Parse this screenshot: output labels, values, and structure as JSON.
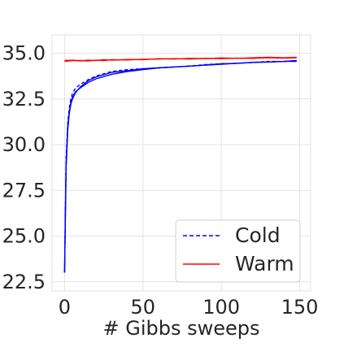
{
  "chart_data": {
    "type": "line",
    "title": "",
    "xlabel": "# Gibbs sweeps",
    "ylabel": "",
    "xlim": [
      -8,
      157
    ],
    "ylim": [
      22.0,
      36.0
    ],
    "x_ticks": [
      0,
      50,
      100,
      150
    ],
    "y_ticks": [
      22.5,
      25.0,
      27.5,
      30.0,
      32.5,
      35.0
    ],
    "x_tick_labels": [
      "0",
      "50",
      "100",
      "150"
    ],
    "y_tick_labels": [
      "22.5",
      "25.0",
      "27.5",
      "30.0",
      "32.5",
      "35.0"
    ],
    "grid": true,
    "legend_position": "bottom-right",
    "legend": [
      {
        "label": "Cold",
        "color": "#0000ff",
        "style": "dashed"
      },
      {
        "label": "Warm",
        "color": "#ff0000",
        "style": "solid"
      }
    ],
    "series": [
      {
        "legend": "Cold",
        "color": "#0000ff",
        "style": "solid",
        "x": [
          0,
          1,
          2,
          3,
          4,
          5,
          7,
          10,
          15,
          20,
          30,
          40,
          50,
          60,
          70,
          80,
          90,
          100,
          110,
          120,
          130,
          140,
          148
        ],
        "y": [
          23.0,
          29.0,
          31.0,
          31.8,
          32.3,
          32.6,
          32.9,
          33.1,
          33.4,
          33.6,
          33.85,
          34.0,
          34.1,
          34.2,
          34.25,
          34.3,
          34.35,
          34.4,
          34.45,
          34.5,
          34.52,
          34.55,
          34.55
        ]
      },
      {
        "legend": "Cold",
        "color": "#0000ff",
        "style": "solid",
        "x": [
          0,
          1,
          2,
          3,
          4,
          5,
          7,
          10,
          15,
          20,
          30,
          40,
          50,
          60,
          70,
          80,
          90,
          100,
          110,
          120,
          130,
          140,
          148
        ],
        "y": [
          23.0,
          28.7,
          30.8,
          31.7,
          32.2,
          32.5,
          32.85,
          33.15,
          33.5,
          33.7,
          33.95,
          34.05,
          34.15,
          34.2,
          34.25,
          34.3,
          34.35,
          34.42,
          34.45,
          34.5,
          34.52,
          34.55,
          34.6
        ]
      },
      {
        "legend": "Cold",
        "color": "#0000ff",
        "style": "dashed",
        "x": [
          0,
          1,
          2,
          3,
          4,
          5,
          7,
          10,
          15,
          20,
          30,
          40,
          50,
          60,
          70,
          80,
          90,
          100,
          110,
          120,
          130,
          140,
          148
        ],
        "y": [
          23.0,
          29.3,
          31.2,
          32.0,
          32.5,
          32.8,
          33.1,
          33.3,
          33.55,
          33.75,
          34.0,
          34.1,
          34.15,
          34.2,
          34.25,
          34.3,
          34.38,
          34.42,
          34.45,
          34.5,
          34.55,
          34.55,
          34.6
        ]
      },
      {
        "legend": "Warm",
        "color": "#ff0000",
        "style": "solid",
        "x": [
          0,
          5,
          10,
          15,
          20,
          25,
          30,
          40,
          50,
          60,
          70,
          80,
          90,
          100,
          110,
          120,
          130,
          140,
          148
        ],
        "y": [
          34.55,
          34.6,
          34.6,
          34.58,
          34.62,
          34.6,
          34.65,
          34.63,
          34.67,
          34.68,
          34.7,
          34.68,
          34.72,
          34.7,
          34.73,
          34.72,
          34.75,
          34.73,
          34.75
        ]
      },
      {
        "legend": "Warm",
        "color": "#ff0000",
        "style": "solid",
        "x": [
          0,
          5,
          10,
          15,
          20,
          25,
          30,
          40,
          50,
          60,
          70,
          80,
          90,
          100,
          110,
          120,
          130,
          140,
          148
        ],
        "y": [
          34.6,
          34.62,
          34.58,
          34.62,
          34.6,
          34.65,
          34.62,
          34.66,
          34.65,
          34.7,
          34.68,
          34.72,
          34.7,
          34.74,
          34.72,
          34.75,
          34.78,
          34.75,
          34.78
        ]
      }
    ]
  }
}
